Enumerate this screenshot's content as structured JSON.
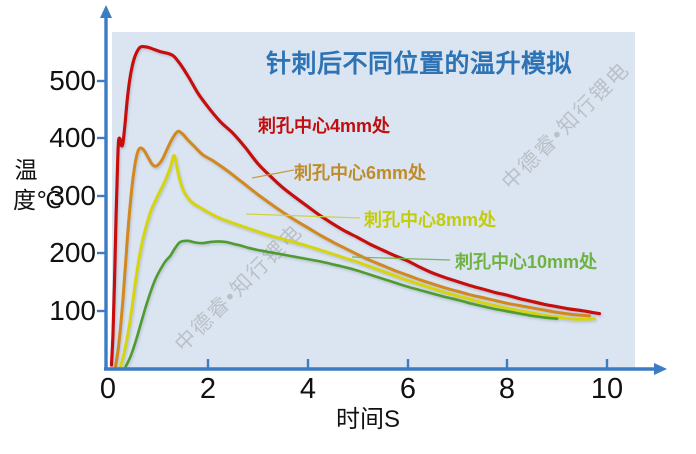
{
  "title": "针刺后不同位置的温升模拟",
  "watermark_text": "中德睿•知行锂电",
  "axes": {
    "y_label": "温度℃",
    "x_label": "时间S",
    "y_ticks": [
      "500",
      "400",
      "300",
      "200",
      "100"
    ],
    "x_ticks": [
      "0",
      "2",
      "4",
      "6",
      "8",
      "10"
    ]
  },
  "colors": {
    "title_blue": "#2e74b5",
    "axis_blue": "#3b7cc4",
    "panel_bg": "#dbe5f1",
    "red": "#c80f0f",
    "orange": "#d2881f",
    "yellow": "#d5d410",
    "green": "#4f9b2f"
  },
  "series_labels": [
    {
      "text": "刺孔中心4mm处",
      "color": "#c00d0d"
    },
    {
      "text": "刺孔中心6mm处",
      "color": "#be8c2b"
    },
    {
      "text": "刺孔中心8mm处",
      "color": "#c3cc0a"
    },
    {
      "text": "刺孔中心10mm处",
      "color": "#6fb244"
    }
  ],
  "chart_data": {
    "type": "line",
    "title": "针刺后不同位置的温升模拟",
    "xlabel": "时间S",
    "ylabel": "温度℃",
    "xlim": [
      0,
      11
    ],
    "ylim": [
      0,
      600
    ],
    "x_tick_values": [
      0,
      2,
      4,
      6,
      8,
      10
    ],
    "y_tick_values": [
      100,
      200,
      300,
      400,
      500
    ],
    "grid": false,
    "legend_position": "inline-labels",
    "series": [
      {
        "name": "刺孔中心4mm处",
        "color": "#c80f0f",
        "peak": {
          "x": 0.7,
          "temp": 560
        },
        "points": [
          [
            0.07,
            5
          ],
          [
            0.1,
            60
          ],
          [
            0.13,
            150
          ],
          [
            0.16,
            260
          ],
          [
            0.19,
            350
          ],
          [
            0.21,
            395
          ],
          [
            0.24,
            400
          ],
          [
            0.27,
            388
          ],
          [
            0.3,
            393
          ],
          [
            0.34,
            425
          ],
          [
            0.4,
            480
          ],
          [
            0.48,
            525
          ],
          [
            0.56,
            548
          ],
          [
            0.65,
            560
          ],
          [
            0.78,
            560
          ],
          [
            0.92,
            556
          ],
          [
            1.05,
            552
          ],
          [
            1.2,
            549
          ],
          [
            1.32,
            544
          ],
          [
            1.45,
            530
          ],
          [
            1.6,
            510
          ],
          [
            1.8,
            480
          ],
          [
            2.0,
            456
          ],
          [
            2.25,
            430
          ],
          [
            2.5,
            410
          ],
          [
            2.75,
            385
          ],
          [
            3.0,
            357
          ],
          [
            3.25,
            335
          ],
          [
            3.5,
            315
          ],
          [
            3.75,
            298
          ],
          [
            4.0,
            282
          ],
          [
            4.25,
            266
          ],
          [
            4.5,
            252
          ],
          [
            4.75,
            239
          ],
          [
            5.0,
            228
          ],
          [
            5.25,
            216
          ],
          [
            5.5,
            206
          ],
          [
            5.75,
            196
          ],
          [
            6.0,
            187
          ],
          [
            6.25,
            176
          ],
          [
            6.5,
            166
          ],
          [
            6.75,
            158
          ],
          [
            7.0,
            151
          ],
          [
            7.25,
            144
          ],
          [
            7.5,
            138
          ],
          [
            7.75,
            132
          ],
          [
            8.0,
            127
          ],
          [
            8.25,
            121
          ],
          [
            8.5,
            116
          ],
          [
            8.75,
            111
          ],
          [
            9.0,
            107
          ],
          [
            9.25,
            103
          ],
          [
            9.5,
            100
          ],
          [
            9.7,
            97
          ],
          [
            9.85,
            95
          ]
        ]
      },
      {
        "name": "刺孔中心6mm处",
        "color": "#d2881f",
        "peak": {
          "x": 1.4,
          "temp": 413
        },
        "points": [
          [
            0.15,
            2
          ],
          [
            0.2,
            30
          ],
          [
            0.25,
            70
          ],
          [
            0.3,
            120
          ],
          [
            0.35,
            180
          ],
          [
            0.4,
            240
          ],
          [
            0.45,
            290
          ],
          [
            0.5,
            330
          ],
          [
            0.55,
            360
          ],
          [
            0.6,
            378
          ],
          [
            0.65,
            384
          ],
          [
            0.72,
            380
          ],
          [
            0.8,
            368
          ],
          [
            0.88,
            356
          ],
          [
            0.95,
            352
          ],
          [
            1.02,
            356
          ],
          [
            1.1,
            366
          ],
          [
            1.2,
            385
          ],
          [
            1.3,
            402
          ],
          [
            1.4,
            413
          ],
          [
            1.5,
            408
          ],
          [
            1.6,
            398
          ],
          [
            1.75,
            385
          ],
          [
            1.9,
            372
          ],
          [
            2.1,
            362
          ],
          [
            2.3,
            350
          ],
          [
            2.5,
            337
          ],
          [
            2.75,
            320
          ],
          [
            3.0,
            303
          ],
          [
            3.25,
            287
          ],
          [
            3.5,
            272
          ],
          [
            3.75,
            258
          ],
          [
            4.0,
            245
          ],
          [
            4.25,
            232
          ],
          [
            4.5,
            220
          ],
          [
            4.75,
            209
          ],
          [
            5.0,
            198
          ],
          [
            5.25,
            188
          ],
          [
            5.5,
            179
          ],
          [
            5.75,
            170
          ],
          [
            6.0,
            162
          ],
          [
            6.25,
            154
          ],
          [
            6.5,
            147
          ],
          [
            6.75,
            140
          ],
          [
            7.0,
            134
          ],
          [
            7.25,
            128
          ],
          [
            7.5,
            123
          ],
          [
            7.75,
            118
          ],
          [
            8.0,
            113
          ],
          [
            8.25,
            109
          ],
          [
            8.5,
            105
          ],
          [
            8.75,
            101
          ],
          [
            9.0,
            97
          ],
          [
            9.25,
            94
          ],
          [
            9.5,
            92
          ],
          [
            9.65,
            91
          ]
        ]
      },
      {
        "name": "刺孔中心8mm处",
        "color": "#d5d410",
        "peak": {
          "x": 1.33,
          "temp": 372
        },
        "points": [
          [
            0.25,
            2
          ],
          [
            0.32,
            25
          ],
          [
            0.4,
            60
          ],
          [
            0.48,
            105
          ],
          [
            0.55,
            150
          ],
          [
            0.62,
            190
          ],
          [
            0.7,
            225
          ],
          [
            0.78,
            252
          ],
          [
            0.85,
            272
          ],
          [
            0.95,
            292
          ],
          [
            1.05,
            310
          ],
          [
            1.15,
            328
          ],
          [
            1.25,
            350
          ],
          [
            1.31,
            370
          ],
          [
            1.35,
            365
          ],
          [
            1.4,
            342
          ],
          [
            1.46,
            322
          ],
          [
            1.52,
            308
          ],
          [
            1.6,
            297
          ],
          [
            1.7,
            288
          ],
          [
            1.85,
            280
          ],
          [
            2.0,
            272
          ],
          [
            2.2,
            263
          ],
          [
            2.4,
            256
          ],
          [
            2.6,
            250
          ],
          [
            2.8,
            244
          ],
          [
            3.0,
            238
          ],
          [
            3.25,
            231
          ],
          [
            3.5,
            225
          ],
          [
            3.75,
            219
          ],
          [
            4.0,
            213
          ],
          [
            4.25,
            206
          ],
          [
            4.5,
            199
          ],
          [
            4.75,
            192
          ],
          [
            5.0,
            185
          ],
          [
            5.25,
            177
          ],
          [
            5.5,
            169
          ],
          [
            5.75,
            161
          ],
          [
            6.0,
            153
          ],
          [
            6.25,
            146
          ],
          [
            6.5,
            139
          ],
          [
            6.75,
            132
          ],
          [
            7.0,
            126
          ],
          [
            7.25,
            120
          ],
          [
            7.5,
            114
          ],
          [
            7.75,
            109
          ],
          [
            8.0,
            104
          ],
          [
            8.25,
            100
          ],
          [
            8.5,
            96
          ],
          [
            8.75,
            92
          ],
          [
            9.0,
            89
          ],
          [
            9.25,
            86
          ],
          [
            9.5,
            85
          ],
          [
            9.75,
            86
          ]
        ]
      },
      {
        "name": "刺孔中心10mm处",
        "color": "#4f9b2f",
        "peak": {
          "x": 1.6,
          "temp": 222
        },
        "points": [
          [
            0.35,
            2
          ],
          [
            0.45,
            20
          ],
          [
            0.55,
            45
          ],
          [
            0.65,
            75
          ],
          [
            0.75,
            105
          ],
          [
            0.85,
            132
          ],
          [
            0.95,
            155
          ],
          [
            1.05,
            172
          ],
          [
            1.15,
            186
          ],
          [
            1.25,
            196
          ],
          [
            1.35,
            210
          ],
          [
            1.45,
            220
          ],
          [
            1.6,
            222
          ],
          [
            1.75,
            219
          ],
          [
            1.9,
            218
          ],
          [
            2.05,
            220
          ],
          [
            2.2,
            221
          ],
          [
            2.35,
            220
          ],
          [
            2.5,
            217
          ],
          [
            2.65,
            214
          ],
          [
            2.8,
            210
          ],
          [
            3.0,
            206
          ],
          [
            3.25,
            202
          ],
          [
            3.5,
            198
          ],
          [
            3.75,
            194
          ],
          [
            4.0,
            190
          ],
          [
            4.25,
            186
          ],
          [
            4.5,
            181
          ],
          [
            4.75,
            176
          ],
          [
            5.0,
            170
          ],
          [
            5.25,
            163
          ],
          [
            5.5,
            156
          ],
          [
            5.75,
            149
          ],
          [
            6.0,
            142
          ],
          [
            6.25,
            136
          ],
          [
            6.5,
            130
          ],
          [
            6.75,
            124
          ],
          [
            7.0,
            119
          ],
          [
            7.25,
            113
          ],
          [
            7.5,
            108
          ],
          [
            7.75,
            103
          ],
          [
            8.0,
            99
          ],
          [
            8.25,
            95
          ],
          [
            8.5,
            91
          ],
          [
            8.75,
            88
          ],
          [
            9.0,
            86
          ]
        ]
      }
    ]
  }
}
